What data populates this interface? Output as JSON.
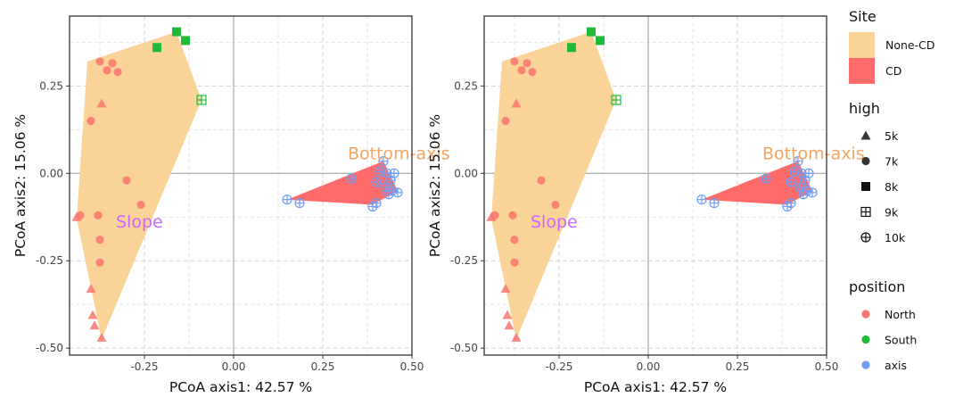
{
  "chart_data": [
    {
      "type": "scatter",
      "panel": "left",
      "xlabel": "PCoA axis1:  42.57 %",
      "ylabel": "PCoA axis2:  15.06 %",
      "xlim": [
        -0.46,
        0.5
      ],
      "ylim": [
        -0.52,
        0.45
      ],
      "xticks": [
        -0.25,
        0.0,
        0.25,
        0.5
      ],
      "xtick_labels": [
        "-0.25",
        "0.00",
        "0.25",
        "0.50"
      ],
      "yticks": [
        -0.5,
        -0.25,
        0.0,
        0.25
      ],
      "ytick_labels": [
        "-0.50",
        "-0.25",
        "0.00",
        "0.25"
      ],
      "grid": true,
      "annotations": [
        {
          "text": "Slope",
          "x": -0.33,
          "y": -0.155,
          "color": "#cc66ff"
        },
        {
          "text": "Bottom-axis",
          "x": 0.32,
          "y": 0.04,
          "color": "#f4a460"
        }
      ],
      "hulls": [
        {
          "name": "None-CD",
          "color": "#fad399",
          "points": [
            [
              -0.41,
              0.32
            ],
            [
              -0.16,
              0.405
            ],
            [
              -0.09,
              0.21
            ],
            [
              -0.37,
              -0.475
            ],
            [
              -0.44,
              -0.13
            ]
          ]
        },
        {
          "name": "CD",
          "color": "#ff6b6b",
          "points": [
            [
              0.15,
              -0.075
            ],
            [
              0.42,
              0.035
            ],
            [
              0.46,
              -0.05
            ],
            [
              0.39,
              -0.09
            ]
          ]
        }
      ],
      "points": [
        {
          "x": -0.375,
          "y": 0.32,
          "position": "North",
          "high": "7k"
        },
        {
          "x": -0.34,
          "y": 0.315,
          "position": "North",
          "high": "7k"
        },
        {
          "x": -0.355,
          "y": 0.295,
          "position": "North",
          "high": "7k"
        },
        {
          "x": -0.325,
          "y": 0.29,
          "position": "North",
          "high": "7k"
        },
        {
          "x": -0.37,
          "y": 0.2,
          "position": "North",
          "high": "5k"
        },
        {
          "x": -0.4,
          "y": 0.15,
          "position": "North",
          "high": "7k"
        },
        {
          "x": -0.3,
          "y": -0.02,
          "position": "North",
          "high": "7k"
        },
        {
          "x": -0.38,
          "y": -0.12,
          "position": "North",
          "high": "7k"
        },
        {
          "x": -0.26,
          "y": -0.09,
          "position": "North",
          "high": "7k"
        },
        {
          "x": -0.43,
          "y": -0.12,
          "position": "North",
          "high": "7k"
        },
        {
          "x": -0.44,
          "y": -0.125,
          "position": "North",
          "high": "5k"
        },
        {
          "x": -0.375,
          "y": -0.19,
          "position": "North",
          "high": "7k"
        },
        {
          "x": -0.375,
          "y": -0.255,
          "position": "North",
          "high": "7k"
        },
        {
          "x": -0.4,
          "y": -0.33,
          "position": "North",
          "high": "5k"
        },
        {
          "x": -0.395,
          "y": -0.405,
          "position": "North",
          "high": "5k"
        },
        {
          "x": -0.39,
          "y": -0.435,
          "position": "North",
          "high": "5k"
        },
        {
          "x": -0.37,
          "y": -0.47,
          "position": "North",
          "high": "5k"
        },
        {
          "x": -0.16,
          "y": 0.405,
          "position": "South",
          "high": "8k"
        },
        {
          "x": -0.135,
          "y": 0.38,
          "position": "South",
          "high": "8k"
        },
        {
          "x": -0.215,
          "y": 0.36,
          "position": "South",
          "high": "8k"
        },
        {
          "x": -0.09,
          "y": 0.21,
          "position": "South",
          "high": "9k"
        },
        {
          "x": 0.15,
          "y": -0.075,
          "position": "axis",
          "high": "10k"
        },
        {
          "x": 0.185,
          "y": -0.085,
          "position": "axis",
          "high": "10k"
        },
        {
          "x": 0.33,
          "y": -0.015,
          "position": "axis",
          "high": "10k"
        },
        {
          "x": 0.42,
          "y": 0.035,
          "position": "axis",
          "high": "10k"
        },
        {
          "x": 0.41,
          "y": 0.005,
          "position": "axis",
          "high": "10k"
        },
        {
          "x": 0.43,
          "y": 0.0,
          "position": "axis",
          "high": "10k"
        },
        {
          "x": 0.45,
          "y": 0.0,
          "position": "axis",
          "high": "10k"
        },
        {
          "x": 0.44,
          "y": -0.02,
          "position": "axis",
          "high": "10k"
        },
        {
          "x": 0.4,
          "y": -0.025,
          "position": "axis",
          "high": "10k"
        },
        {
          "x": 0.425,
          "y": -0.04,
          "position": "axis",
          "high": "10k"
        },
        {
          "x": 0.445,
          "y": -0.05,
          "position": "axis",
          "high": "10k"
        },
        {
          "x": 0.46,
          "y": -0.055,
          "position": "axis",
          "high": "10k"
        },
        {
          "x": 0.435,
          "y": -0.06,
          "position": "axis",
          "high": "10k"
        },
        {
          "x": 0.4,
          "y": -0.085,
          "position": "axis",
          "high": "10k"
        },
        {
          "x": 0.39,
          "y": -0.095,
          "position": "axis",
          "high": "10k"
        }
      ]
    },
    {
      "type": "scatter",
      "panel": "right",
      "xlabel": "PCoA axis1:  42.57 %",
      "ylabel": "PCoA axis2:  15.06 %",
      "xlim": [
        -0.46,
        0.5
      ],
      "ylim": [
        -0.52,
        0.45
      ],
      "xticks": [
        -0.25,
        0.0,
        0.25,
        0.5
      ],
      "xtick_labels": [
        "-0.25",
        "0.00",
        "0.25",
        "0.50"
      ],
      "yticks": [
        -0.5,
        -0.25,
        0.0,
        0.25
      ],
      "ytick_labels": [
        "-0.50",
        "-0.25",
        "0.00",
        "0.25"
      ],
      "grid": true,
      "annotations": [
        {
          "text": "Slope",
          "x": -0.33,
          "y": -0.155,
          "color": "#cc66ff"
        },
        {
          "text": "Bottom-axis",
          "x": 0.32,
          "y": 0.04,
          "color": "#f4a460"
        }
      ],
      "hulls": [
        {
          "name": "None-CD",
          "color": "#fad399",
          "points": [
            [
              -0.41,
              0.32
            ],
            [
              -0.16,
              0.405
            ],
            [
              -0.09,
              0.21
            ],
            [
              -0.37,
              -0.475
            ],
            [
              -0.44,
              -0.13
            ]
          ]
        },
        {
          "name": "CD",
          "color": "#ff6b6b",
          "points": [
            [
              0.15,
              -0.075
            ],
            [
              0.42,
              0.035
            ],
            [
              0.46,
              -0.05
            ],
            [
              0.39,
              -0.09
            ]
          ]
        }
      ],
      "points": [
        {
          "x": -0.375,
          "y": 0.32,
          "position": "North",
          "high": "7k"
        },
        {
          "x": -0.34,
          "y": 0.315,
          "position": "North",
          "high": "7k"
        },
        {
          "x": -0.355,
          "y": 0.295,
          "position": "North",
          "high": "7k"
        },
        {
          "x": -0.325,
          "y": 0.29,
          "position": "North",
          "high": "7k"
        },
        {
          "x": -0.37,
          "y": 0.2,
          "position": "North",
          "high": "5k"
        },
        {
          "x": -0.4,
          "y": 0.15,
          "position": "North",
          "high": "7k"
        },
        {
          "x": -0.3,
          "y": -0.02,
          "position": "North",
          "high": "7k"
        },
        {
          "x": -0.38,
          "y": -0.12,
          "position": "North",
          "high": "7k"
        },
        {
          "x": -0.26,
          "y": -0.09,
          "position": "North",
          "high": "7k"
        },
        {
          "x": -0.43,
          "y": -0.12,
          "position": "North",
          "high": "7k"
        },
        {
          "x": -0.44,
          "y": -0.125,
          "position": "North",
          "high": "5k"
        },
        {
          "x": -0.375,
          "y": -0.19,
          "position": "North",
          "high": "7k"
        },
        {
          "x": -0.375,
          "y": -0.255,
          "position": "North",
          "high": "7k"
        },
        {
          "x": -0.4,
          "y": -0.33,
          "position": "North",
          "high": "5k"
        },
        {
          "x": -0.395,
          "y": -0.405,
          "position": "North",
          "high": "5k"
        },
        {
          "x": -0.39,
          "y": -0.435,
          "position": "North",
          "high": "5k"
        },
        {
          "x": -0.37,
          "y": -0.47,
          "position": "North",
          "high": "5k"
        },
        {
          "x": -0.16,
          "y": 0.405,
          "position": "South",
          "high": "8k"
        },
        {
          "x": -0.135,
          "y": 0.38,
          "position": "South",
          "high": "8k"
        },
        {
          "x": -0.215,
          "y": 0.36,
          "position": "South",
          "high": "8k"
        },
        {
          "x": -0.09,
          "y": 0.21,
          "position": "South",
          "high": "9k"
        },
        {
          "x": 0.15,
          "y": -0.075,
          "position": "axis",
          "high": "10k"
        },
        {
          "x": 0.185,
          "y": -0.085,
          "position": "axis",
          "high": "10k"
        },
        {
          "x": 0.33,
          "y": -0.015,
          "position": "axis",
          "high": "10k"
        },
        {
          "x": 0.42,
          "y": 0.035,
          "position": "axis",
          "high": "10k"
        },
        {
          "x": 0.41,
          "y": 0.005,
          "position": "axis",
          "high": "10k"
        },
        {
          "x": 0.43,
          "y": 0.0,
          "position": "axis",
          "high": "10k"
        },
        {
          "x": 0.45,
          "y": 0.0,
          "position": "axis",
          "high": "10k"
        },
        {
          "x": 0.44,
          "y": -0.02,
          "position": "axis",
          "high": "10k"
        },
        {
          "x": 0.4,
          "y": -0.025,
          "position": "axis",
          "high": "10k"
        },
        {
          "x": 0.425,
          "y": -0.04,
          "position": "axis",
          "high": "10k"
        },
        {
          "x": 0.445,
          "y": -0.05,
          "position": "axis",
          "high": "10k"
        },
        {
          "x": 0.46,
          "y": -0.055,
          "position": "axis",
          "high": "10k"
        },
        {
          "x": 0.435,
          "y": -0.06,
          "position": "axis",
          "high": "10k"
        },
        {
          "x": 0.4,
          "y": -0.085,
          "position": "axis",
          "high": "10k"
        },
        {
          "x": 0.39,
          "y": -0.095,
          "position": "axis",
          "high": "10k"
        }
      ]
    }
  ],
  "legend": {
    "site": {
      "title": "Site",
      "items": [
        {
          "label": "None-CD",
          "color": "#fad399"
        },
        {
          "label": "CD",
          "color": "#ff6b6b"
        }
      ]
    },
    "high": {
      "title": "high",
      "items": [
        {
          "label": "5k",
          "shape": "triangle"
        },
        {
          "label": "7k",
          "shape": "circle"
        },
        {
          "label": "8k",
          "shape": "square"
        },
        {
          "label": "9k",
          "shape": "square-plus"
        },
        {
          "label": "10k",
          "shape": "circle-plus"
        }
      ]
    },
    "position": {
      "title": "position",
      "items": [
        {
          "label": "North",
          "color": "#f8766d"
        },
        {
          "label": "South",
          "color": "#1fba38"
        },
        {
          "label": "axis",
          "color": "#6f9cf6"
        }
      ]
    }
  },
  "colors": {
    "North": "#f8766d",
    "South": "#1fba38",
    "axis": "#6f9cf6"
  }
}
